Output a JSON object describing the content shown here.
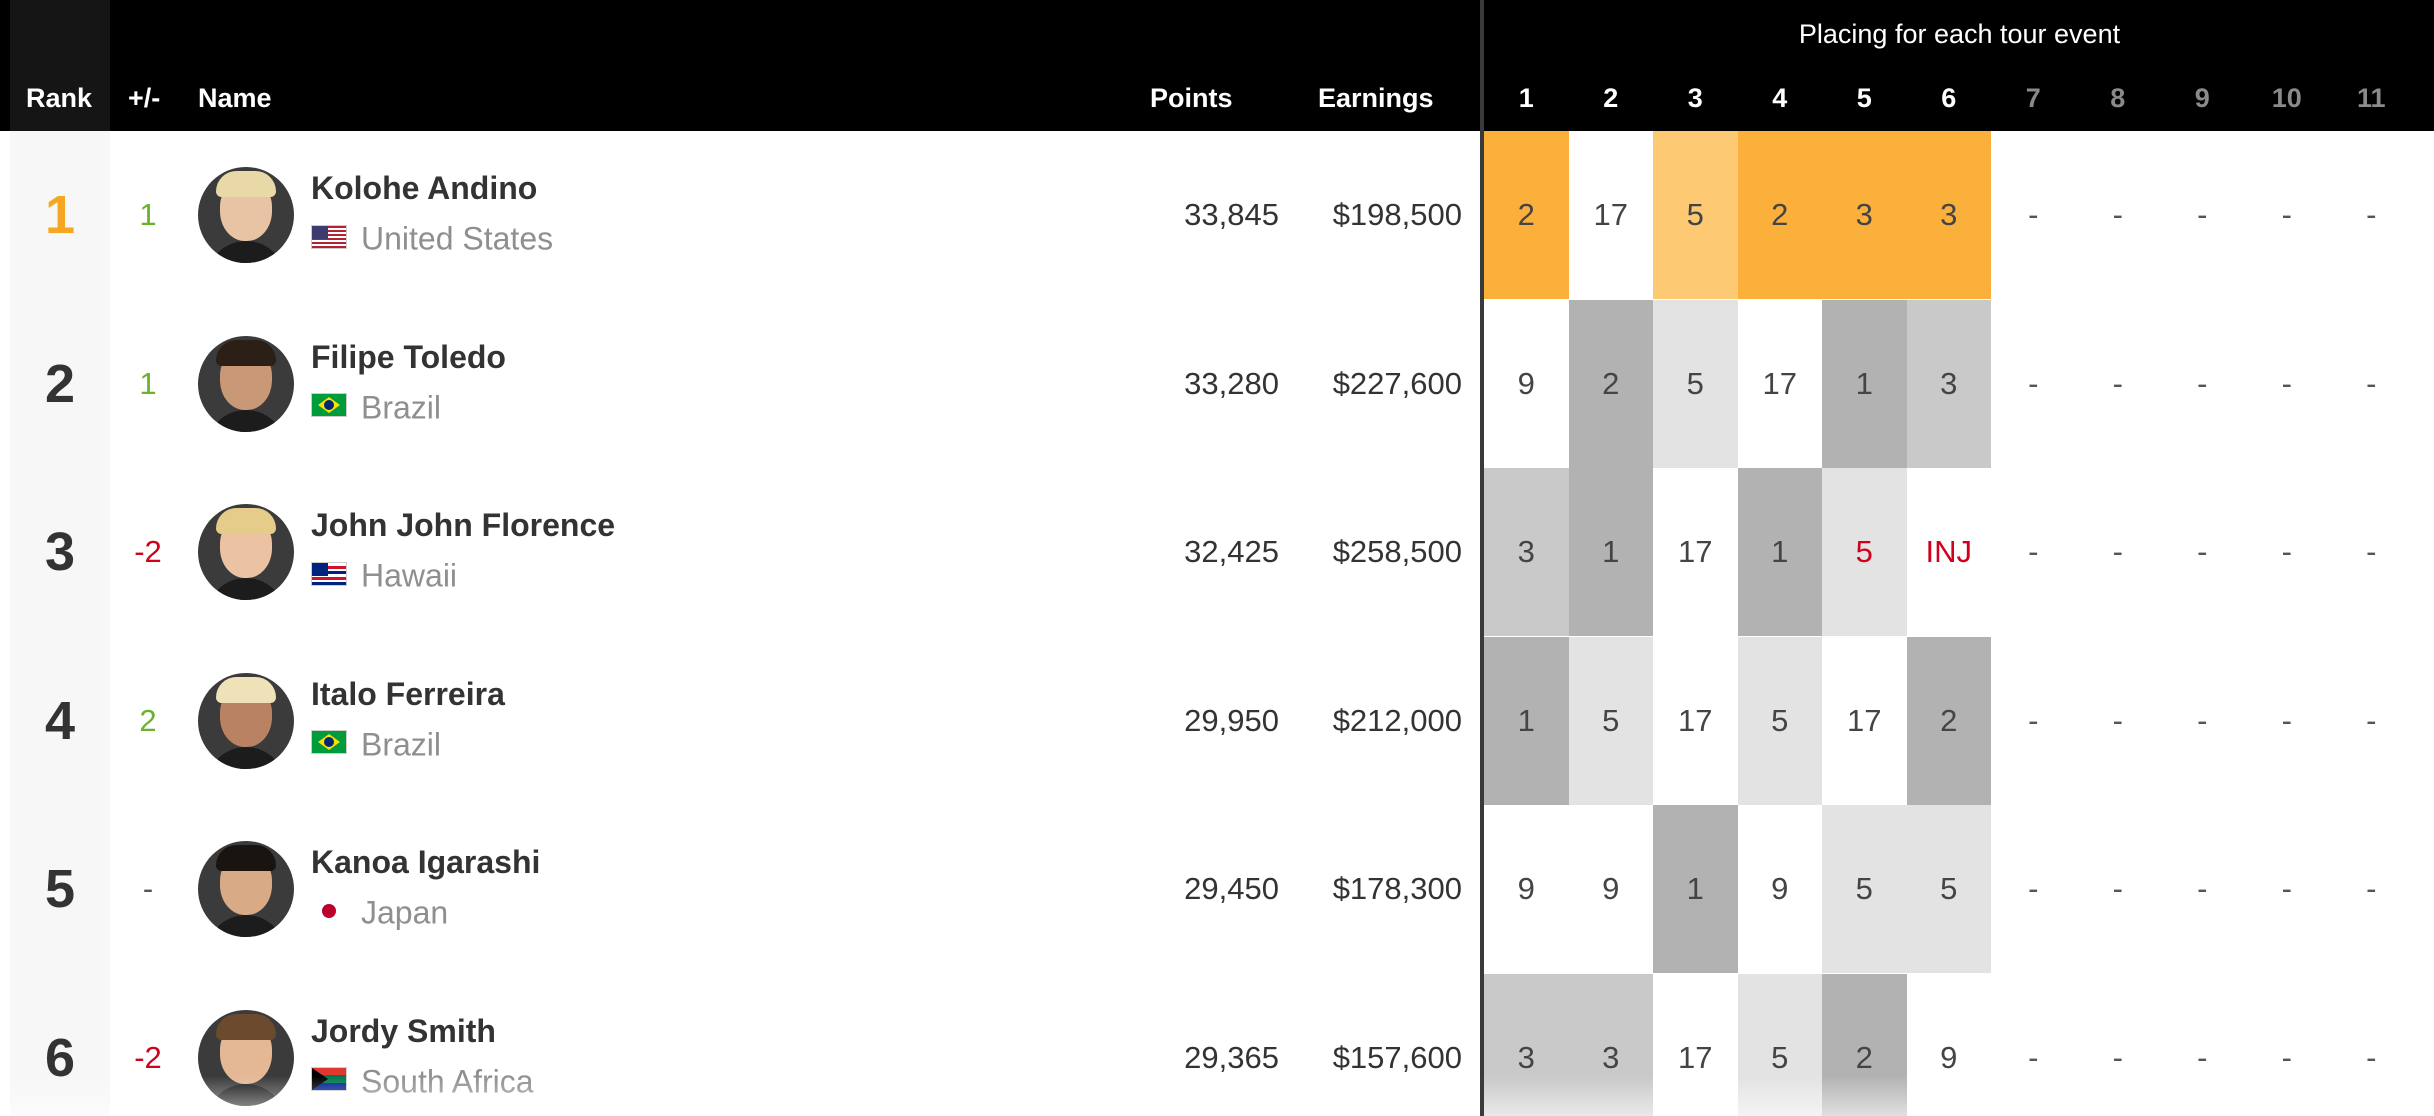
{
  "header": {
    "rank": "Rank",
    "change": "+/-",
    "name": "Name",
    "points": "Points",
    "earnings": "Earnings",
    "events_title": "Placing for each tour event",
    "events": [
      "1",
      "2",
      "3",
      "4",
      "5",
      "6",
      "7",
      "8",
      "9",
      "10",
      "11"
    ]
  },
  "colors": {
    "gold_dark": "#fbb03b",
    "gold_light": "#fdc972",
    "gray_dark": "#b2b2b2",
    "gray_mid": "#c9c9c9",
    "gray_light": "#e3e3e3",
    "up": "#6ab22e",
    "down": "#d0021b"
  },
  "rows": [
    {
      "rank": "1",
      "change": "1",
      "trend": "up",
      "name": "Kolohe Andino",
      "country": "United States",
      "flag": "us-flag-icon",
      "points": "33,845",
      "earnings": "$198,500",
      "events": [
        "2",
        "17",
        "5",
        "2",
        "3",
        "3",
        "-",
        "-",
        "-",
        "-",
        "-"
      ]
    },
    {
      "rank": "2",
      "change": "1",
      "trend": "up",
      "name": "Filipe Toledo",
      "country": "Brazil",
      "flag": "brazil-flag-icon",
      "points": "33,280",
      "earnings": "$227,600",
      "events": [
        "9",
        "2",
        "5",
        "17",
        "1",
        "3",
        "-",
        "-",
        "-",
        "-",
        "-"
      ]
    },
    {
      "rank": "3",
      "change": "-2",
      "trend": "down",
      "name": "John John Florence",
      "country": "Hawaii",
      "flag": "hawaii-flag-icon",
      "points": "32,425",
      "earnings": "$258,500",
      "events": [
        "3",
        "1",
        "17",
        "1",
        "5",
        "INJ",
        "-",
        "-",
        "-",
        "-",
        "-"
      ]
    },
    {
      "rank": "4",
      "change": "2",
      "trend": "up",
      "name": "Italo Ferreira",
      "country": "Brazil",
      "flag": "brazil-flag-icon",
      "points": "29,950",
      "earnings": "$212,000",
      "events": [
        "1",
        "5",
        "17",
        "5",
        "17",
        "2",
        "-",
        "-",
        "-",
        "-",
        "-"
      ]
    },
    {
      "rank": "5",
      "change": "-",
      "trend": "same",
      "name": "Kanoa Igarashi",
      "country": "Japan",
      "flag": "japan-flag-icon",
      "points": "29,450",
      "earnings": "$178,300",
      "events": [
        "9",
        "9",
        "1",
        "9",
        "5",
        "5",
        "-",
        "-",
        "-",
        "-",
        "-"
      ]
    },
    {
      "rank": "6",
      "change": "-2",
      "trend": "down",
      "name": "Jordy Smith",
      "country": "South Africa",
      "flag": "south-africa-flag-icon",
      "points": "29,365",
      "earnings": "$157,600",
      "events": [
        "3",
        "3",
        "17",
        "5",
        "2",
        "9",
        "-",
        "-",
        "-",
        "-",
        "-"
      ]
    }
  ]
}
